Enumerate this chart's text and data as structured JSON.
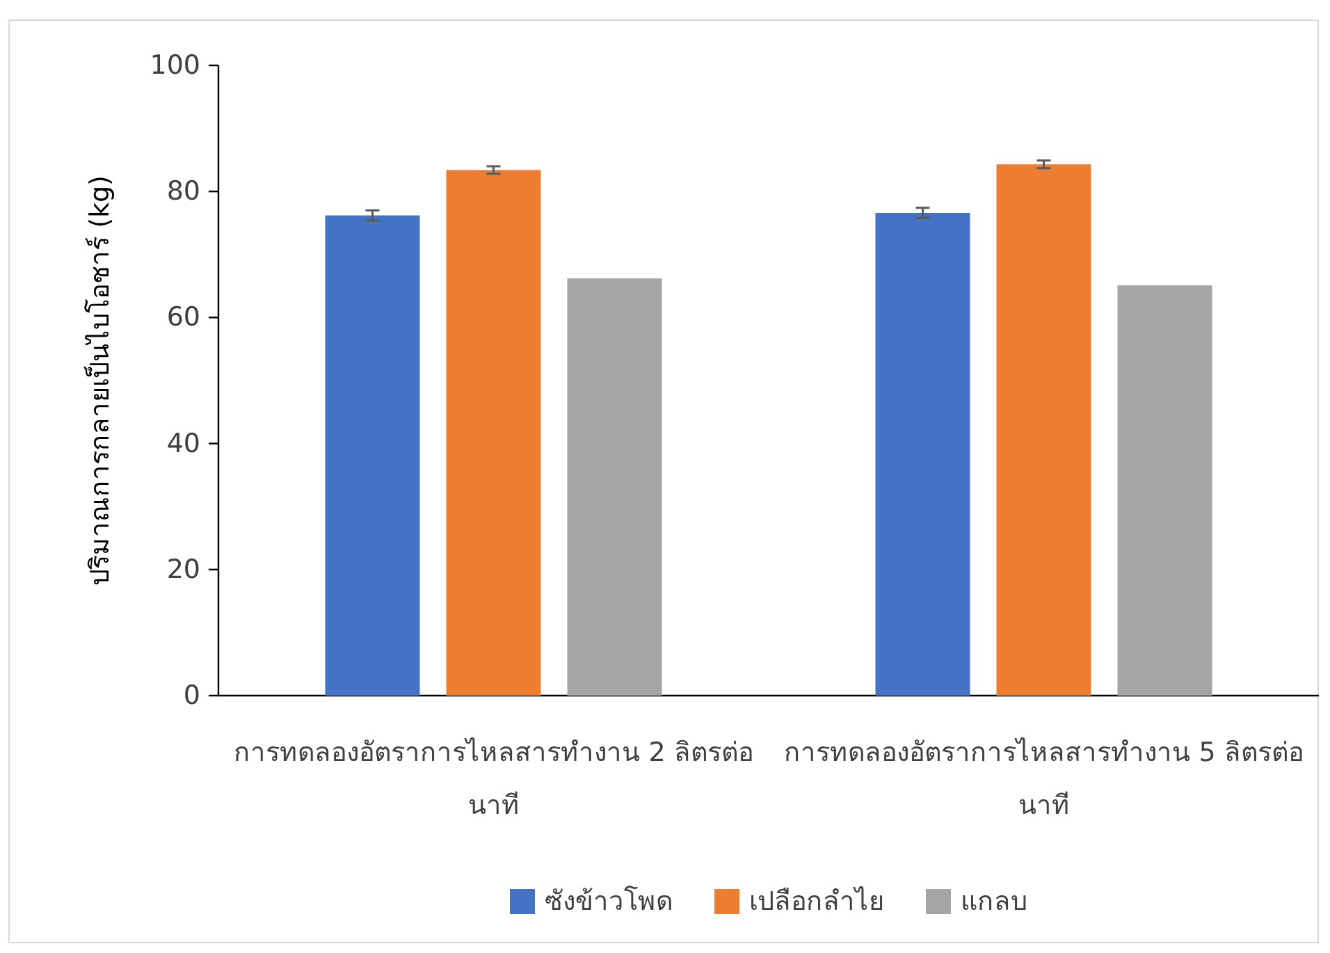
{
  "chart_data": {
    "type": "bar",
    "ylabel": "ปริมาณการกลายเป็นไบโอชาร์ (kg)",
    "categories": [
      "การทดลองอัตราการไหลสารทำงาน 2 ลิตรต่อนาที",
      "การทดลองอัตราการไหลสารทำงาน 5 ลิตรต่อนาที"
    ],
    "series": [
      {
        "name": "ซังข้าวโพด",
        "color": "#4472c4",
        "values": [
          76.2,
          76.6
        ],
        "errors": [
          0.8,
          0.8
        ]
      },
      {
        "name": "เปลือกลำไย",
        "color": "#ed7d31",
        "values": [
          83.4,
          84.3
        ],
        "errors": [
          0.6,
          0.6
        ]
      },
      {
        "name": "แกลบ",
        "color": "#a5a5a5",
        "values": [
          66.2,
          65.1
        ]
      }
    ],
    "ylim": [
      0,
      100
    ],
    "yticks": [
      0,
      20,
      40,
      60,
      80,
      100
    ],
    "grid": false,
    "legend": "bottom"
  }
}
